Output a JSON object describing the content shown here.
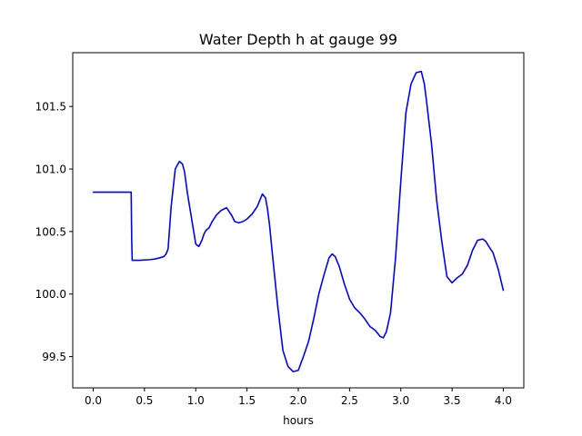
{
  "chart_data": {
    "type": "line",
    "title": "Water Depth h at gauge 99",
    "xlabel": "hours",
    "ylabel": "",
    "xlim": [
      -0.2,
      4.2
    ],
    "ylim": [
      99.25,
      101.93
    ],
    "xticks": [
      0.0,
      0.5,
      1.0,
      1.5,
      2.0,
      2.5,
      3.0,
      3.5,
      4.0
    ],
    "xtick_labels": [
      "0.0",
      "0.5",
      "1.0",
      "1.5",
      "2.0",
      "2.5",
      "3.0",
      "3.5",
      "4.0"
    ],
    "yticks": [
      99.5,
      100.0,
      100.5,
      101.0,
      101.5
    ],
    "ytick_labels": [
      "99.5",
      "100.0",
      "100.5",
      "101.0",
      "101.5"
    ],
    "grid": false,
    "series": [
      {
        "color": "#0000ff",
        "x": [
          0.0,
          0.1,
          0.2,
          0.3,
          0.37,
          0.375,
          0.38,
          0.45,
          0.55,
          0.6,
          0.65,
          0.69,
          0.71,
          0.73,
          0.76,
          0.8,
          0.84,
          0.87,
          0.89,
          0.92,
          0.95,
          0.98,
          1.0,
          1.03,
          1.06,
          1.08,
          1.1,
          1.13,
          1.16,
          1.2,
          1.25,
          1.3,
          1.35,
          1.38,
          1.42,
          1.46,
          1.5,
          1.55,
          1.6,
          1.65,
          1.68,
          1.7,
          1.72,
          1.75,
          1.8,
          1.85,
          1.9,
          1.95,
          2.0,
          2.05,
          2.1,
          2.15,
          2.2,
          2.25,
          2.3,
          2.33,
          2.36,
          2.4,
          2.45,
          2.5,
          2.55,
          2.6,
          2.65,
          2.7,
          2.75,
          2.8,
          2.83,
          2.86,
          2.9,
          2.95,
          3.0,
          3.05,
          3.1,
          3.15,
          3.2,
          3.23,
          3.25,
          3.3,
          3.35,
          3.4,
          3.45,
          3.5,
          3.55,
          3.6,
          3.65,
          3.7,
          3.75,
          3.8,
          3.83,
          3.86,
          3.9,
          3.95,
          4.0
        ],
        "y": [
          100.815,
          100.815,
          100.815,
          100.815,
          100.815,
          100.44,
          100.27,
          100.27,
          100.275,
          100.28,
          100.29,
          100.3,
          100.32,
          100.36,
          100.7,
          101.0,
          101.06,
          101.04,
          100.98,
          100.8,
          100.65,
          100.5,
          100.4,
          100.38,
          100.43,
          100.48,
          100.51,
          100.53,
          100.58,
          100.63,
          100.67,
          100.69,
          100.63,
          100.58,
          100.57,
          100.58,
          100.6,
          100.64,
          100.7,
          100.8,
          100.77,
          100.68,
          100.55,
          100.3,
          99.9,
          99.55,
          99.42,
          99.38,
          99.39,
          99.5,
          99.62,
          99.8,
          100.0,
          100.15,
          100.29,
          100.32,
          100.3,
          100.22,
          100.08,
          99.96,
          99.89,
          99.85,
          99.8,
          99.74,
          99.71,
          99.66,
          99.65,
          99.7,
          99.85,
          100.3,
          100.9,
          101.45,
          101.68,
          101.77,
          101.78,
          101.68,
          101.55,
          101.2,
          100.75,
          100.42,
          100.14,
          100.09,
          100.13,
          100.16,
          100.23,
          100.35,
          100.43,
          100.44,
          100.42,
          100.38,
          100.33,
          100.2,
          100.03
        ]
      }
    ]
  }
}
